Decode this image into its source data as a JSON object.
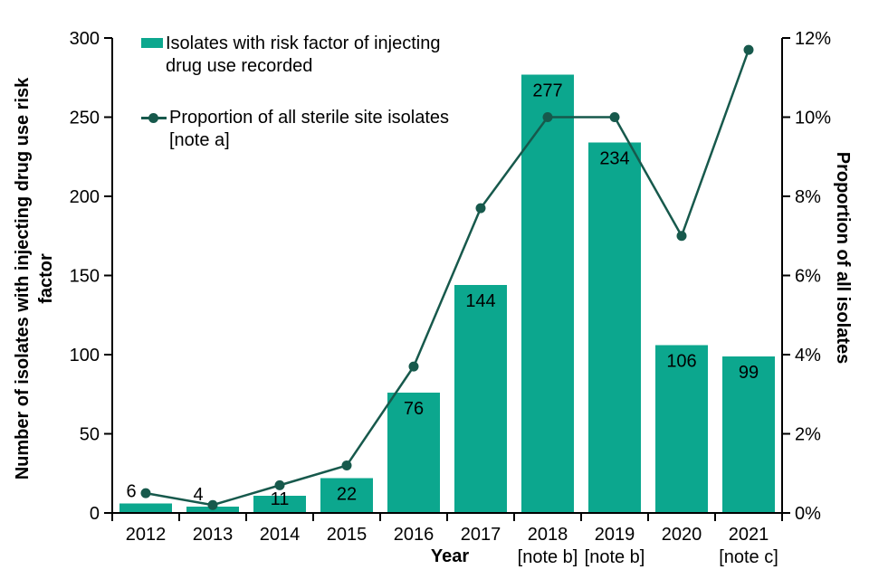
{
  "chart_data": {
    "type": "combo-bar-line",
    "title": "",
    "categories": [
      "2012",
      "2013",
      "2014",
      "2015",
      "2016",
      "2017",
      "2018",
      "2019",
      "2020",
      "2021"
    ],
    "category_notes": [
      "",
      "",
      "",
      "",
      "",
      "",
      "[note b]",
      "[note b]",
      "",
      "[note c]"
    ],
    "series": [
      {
        "name": "Isolates with risk factor of injecting drug use recorded",
        "type": "bar",
        "axis": "left",
        "values": [
          6,
          4,
          11,
          22,
          76,
          144,
          277,
          234,
          106,
          99
        ],
        "color": "#0ca78e"
      },
      {
        "name": "Proportion of all sterile site isolates [note a]",
        "type": "line",
        "axis": "right",
        "values_percent": [
          0.5,
          0.2,
          0.7,
          1.2,
          3.7,
          7.7,
          10.0,
          10.0,
          7.0,
          11.7
        ],
        "color": "#17594c"
      }
    ],
    "left_axis": {
      "label": "Number of isolates with injecting drug use risk factor",
      "label_lines": [
        "Number of isolates with injecting drug use risk",
        "factor"
      ],
      "min": 0,
      "max": 300,
      "step": 50,
      "ticks": [
        "0",
        "50",
        "100",
        "150",
        "200",
        "250",
        "300"
      ]
    },
    "right_axis": {
      "label": "Proportion of all isolates",
      "min": 0,
      "max": 12,
      "step": 2,
      "ticks": [
        "0%",
        "2%",
        "4%",
        "6%",
        "8%",
        "10%",
        "12%"
      ]
    },
    "x_axis": {
      "label": "Year"
    },
    "legend": {
      "bars": {
        "line1": "Isolates with risk factor of injecting",
        "line2": "drug use recorded"
      },
      "line": {
        "line1": "Proportion of all sterile site isolates",
        "line2": "[note a]"
      }
    },
    "grid": false,
    "legend_position": "top-left-inside",
    "axis_color": "#000000",
    "background": "#ffffff"
  }
}
